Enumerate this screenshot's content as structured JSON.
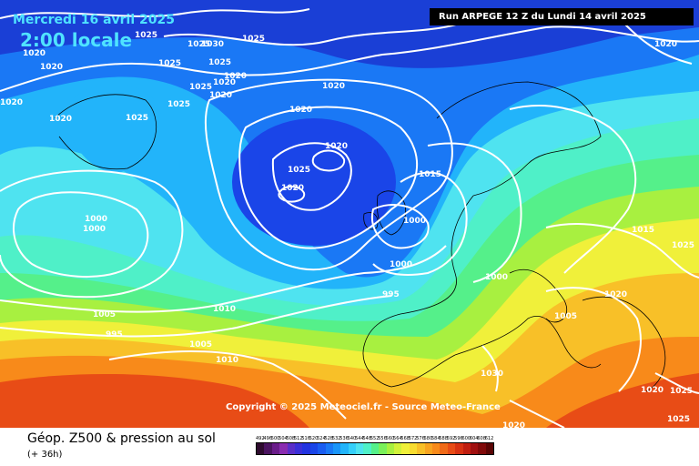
{
  "header": {
    "valid_date": "Mercredi 16 avril 2025",
    "valid_time": "2:00 locale",
    "run_info": "Run ARPEGE 12 Z du Lundi 14 avril 2025"
  },
  "copyright": "Copyright © 2025 Meteociel.fr - Source Meteo-France",
  "footer": {
    "title": "Géop. Z500 & pression au sol",
    "lead": "(+ 36h)"
  },
  "scale": {
    "values": [
      "492",
      "496",
      "500",
      "504",
      "508",
      "512",
      "516",
      "520",
      "524",
      "528",
      "532",
      "536",
      "540",
      "544",
      "548",
      "552",
      "556",
      "560",
      "564",
      "568",
      "572",
      "576",
      "580",
      "584",
      "588",
      "592",
      "596",
      "600",
      "604",
      "608",
      "612"
    ],
    "colors": [
      "#2e0b2e",
      "#4b1460",
      "#6a1c8a",
      "#8a2cb0",
      "#5a2ec8",
      "#3b2fd8",
      "#2233e0",
      "#1a45e8",
      "#1a5cf0",
      "#1a78f5",
      "#1a95f8",
      "#22b4fa",
      "#35cffa",
      "#4fe3f0",
      "#4ff0c8",
      "#55f08a",
      "#7af05a",
      "#a8f040",
      "#d2f23a",
      "#f0f03a",
      "#f8dc30",
      "#f8c028",
      "#f8a420",
      "#f88a1a",
      "#f06a18",
      "#e84c16",
      "#d83212",
      "#c01e10",
      "#a01010",
      "#800a0a",
      "#5a0505"
    ]
  },
  "isobars": [
    {
      "text": "1020",
      "id": "tl-1"
    },
    {
      "text": "1020",
      "id": "tl-2"
    },
    {
      "text": "1020",
      "id": "tl-3"
    },
    {
      "text": "1020",
      "id": "tl-4"
    },
    {
      "text": "1025",
      "id": "gl-1"
    },
    {
      "text": "1025",
      "id": "gl-2"
    },
    {
      "text": "1025",
      "id": "gl-3"
    },
    {
      "text": "1025",
      "id": "gl-4"
    },
    {
      "text": "1030",
      "id": "gl-5"
    },
    {
      "text": "1025",
      "id": "gl-6"
    },
    {
      "text": "1020",
      "id": "gl-7"
    },
    {
      "text": "1020",
      "id": "gl-8"
    },
    {
      "text": "1025",
      "id": "gl-9"
    },
    {
      "text": "1020",
      "id": "gl-10"
    },
    {
      "text": "1025",
      "id": "gl-11"
    },
    {
      "text": "1025",
      "id": "gl-12"
    },
    {
      "text": "1020",
      "id": "gl-13"
    },
    {
      "text": "1020",
      "id": "gl-14"
    },
    {
      "text": "1020",
      "id": "gl-15"
    },
    {
      "text": "1025",
      "id": "gl-16"
    },
    {
      "text": "1020",
      "id": "atl-1"
    },
    {
      "text": "1015",
      "id": "atl-2"
    },
    {
      "text": "1000",
      "id": "atl-3"
    },
    {
      "text": "1000",
      "id": "atl-4"
    },
    {
      "text": "1000",
      "id": "atl-5"
    },
    {
      "text": "1000",
      "id": "atl-6"
    },
    {
      "text": "995",
      "id": "uk-1"
    },
    {
      "text": "1000",
      "id": "w-1"
    },
    {
      "text": "995",
      "id": "w-2"
    },
    {
      "text": "1005",
      "id": "w-3"
    },
    {
      "text": "1010",
      "id": "w-4"
    },
    {
      "text": "1005",
      "id": "fr-1"
    },
    {
      "text": "1010",
      "id": "bi-1"
    },
    {
      "text": "1005",
      "id": "eu-1"
    },
    {
      "text": "1015",
      "id": "mid-1"
    },
    {
      "text": "1020",
      "id": "az-1"
    },
    {
      "text": "1025",
      "id": "az-2"
    },
    {
      "text": "1020",
      "id": "it-1"
    },
    {
      "text": "1025",
      "id": "ee-1"
    },
    {
      "text": "1025",
      "id": "ee-2"
    },
    {
      "text": "1030",
      "id": "ee-3"
    },
    {
      "text": "1020",
      "id": "tr-1"
    },
    {
      "text": "1020",
      "id": "tr-2"
    },
    {
      "text": "1020",
      "id": "tr-3"
    },
    {
      "text": "1010",
      "id": "me-1"
    },
    {
      "text": "1010",
      "id": "me-2"
    },
    {
      "text": "1020",
      "id": "ru-1"
    }
  ]
}
